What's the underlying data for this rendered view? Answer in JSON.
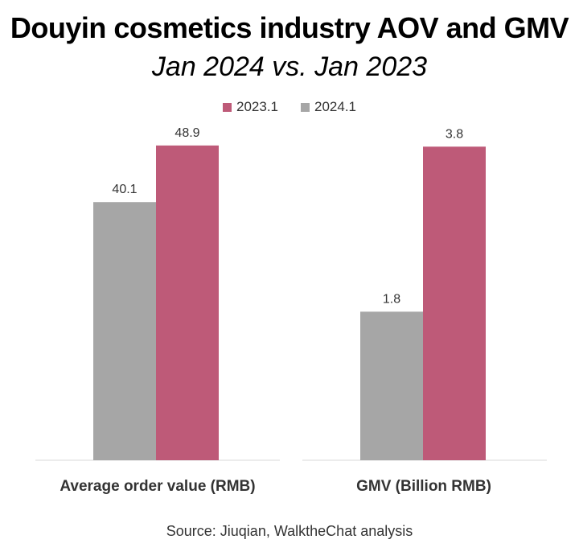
{
  "title": "Douyin cosmetics industry AOV and GMV",
  "subtitle": "Jan 2024 vs. Jan 2023",
  "source": "Source: Jiuqian, WalktheChat analysis",
  "colors": {
    "series_2023": "#BE5A78",
    "series_2024": "#A6A6A6"
  },
  "legend": [
    {
      "label": "2023.1",
      "color": "#BE5A78"
    },
    {
      "label": "2024.1",
      "color": "#A6A6A6"
    }
  ],
  "chart_data": [
    {
      "type": "bar",
      "xlabel": "Average order value (RMB)",
      "ylim": [
        0,
        50
      ],
      "series": [
        {
          "name": "2024.1",
          "values": [
            40.1
          ],
          "labels": [
            "40.1"
          ]
        },
        {
          "name": "2023.1",
          "values": [
            48.9
          ],
          "labels": [
            "48.9"
          ]
        }
      ]
    },
    {
      "type": "bar",
      "xlabel": "GMV (Billion RMB)",
      "ylim": [
        0,
        3.9
      ],
      "series": [
        {
          "name": "2024.1",
          "values": [
            1.8
          ],
          "labels": [
            "1.8"
          ]
        },
        {
          "name": "2023.1",
          "values": [
            3.8
          ],
          "labels": [
            "3.8"
          ]
        }
      ]
    }
  ]
}
